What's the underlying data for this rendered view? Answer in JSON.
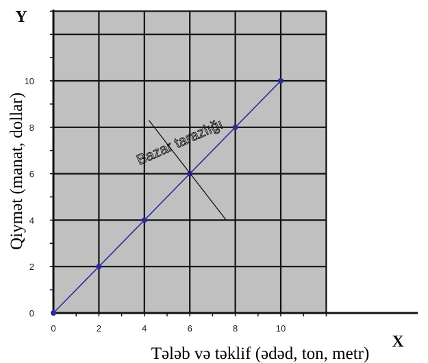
{
  "chart_data": {
    "type": "line",
    "title": "",
    "xlabel": "Tələb və təklif (ədəd, ton, metr)",
    "ylabel": "Qiymət (manat, dollar)",
    "x_axis_letter": "X",
    "y_axis_letter": "Y",
    "xlim": [
      0,
      12
    ],
    "ylim": [
      0,
      13
    ],
    "x_ticks": [
      0,
      2,
      4,
      6,
      8,
      10
    ],
    "y_ticks": [
      0,
      2,
      4,
      6,
      8,
      10
    ],
    "grid": true,
    "plot_background": "#c0c0c0",
    "series": [
      {
        "color": "#2a2aa0",
        "x": [
          0,
          2,
          4,
          6,
          8,
          10
        ],
        "y": [
          0,
          2,
          4,
          6,
          8,
          10
        ]
      }
    ],
    "annotation": {
      "text": "Bazar tarazlığı",
      "point": [
        6,
        6
      ],
      "line_from": [
        4.2,
        8.3
      ],
      "line_to": [
        7.6,
        4.0
      ]
    }
  }
}
